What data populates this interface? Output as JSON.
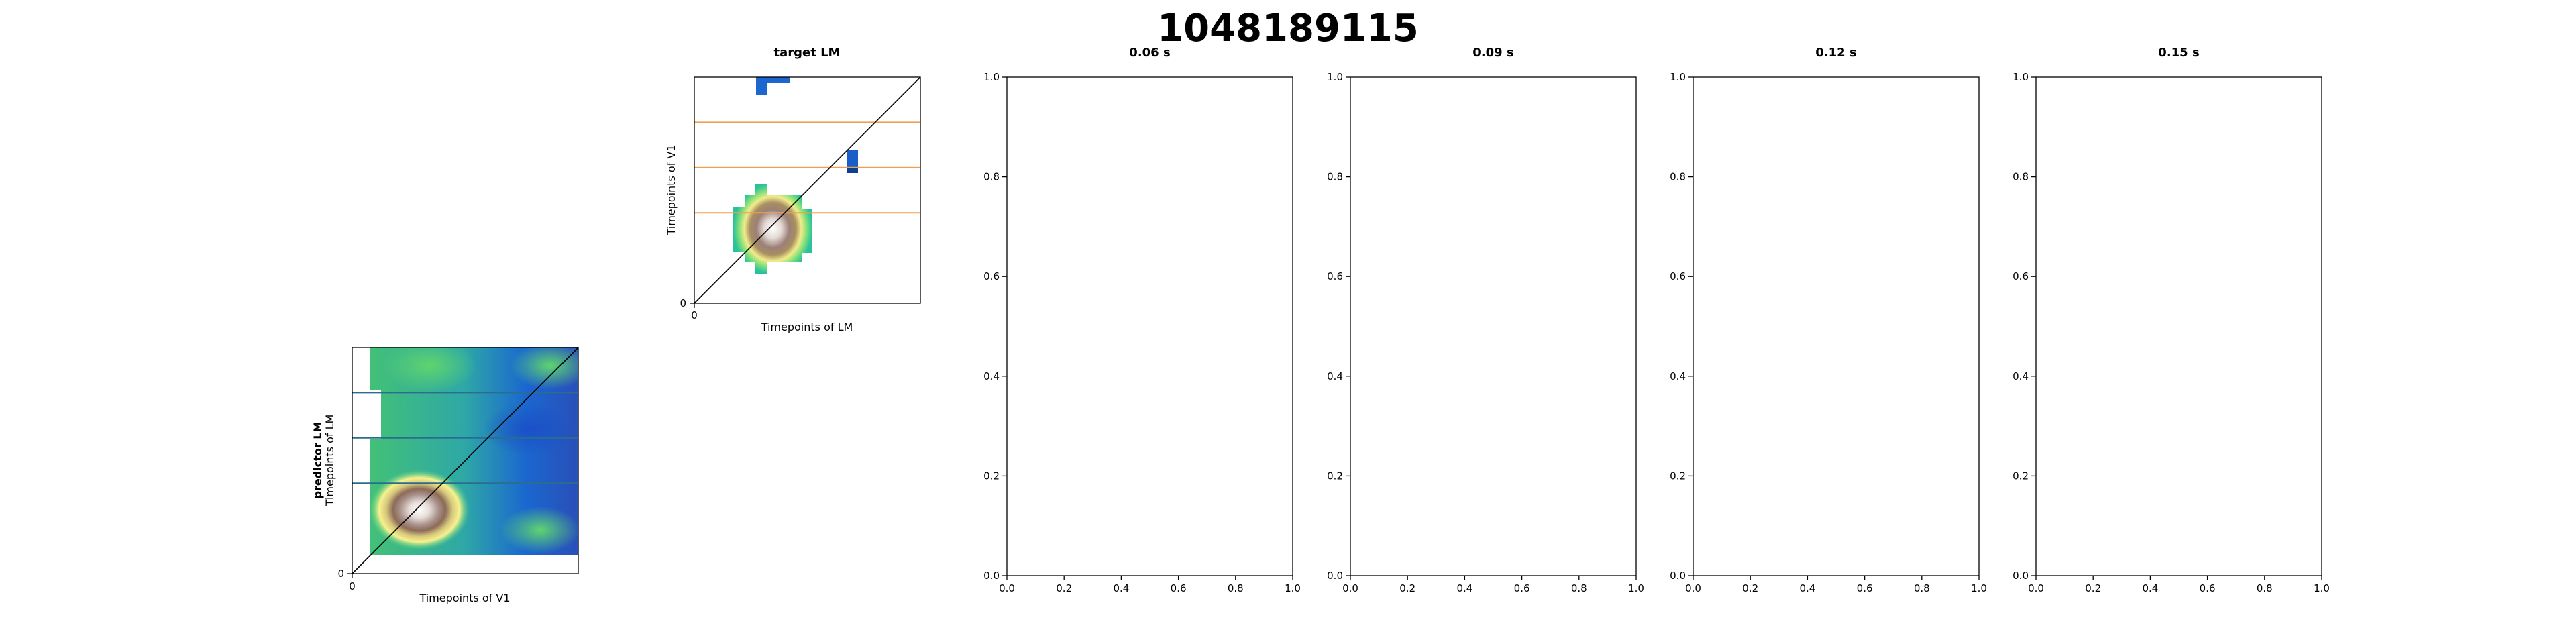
{
  "figure": {
    "title": "1048189115"
  },
  "chart_data": [
    {
      "type": "heatmap",
      "id": "predictor",
      "title": "",
      "row_label": "predictor LM",
      "xlabel": "Timepoints of V1",
      "ylabel": "Timepoints of LM",
      "xticks": [
        "0"
      ],
      "yticks": [
        "0"
      ],
      "diagonal": true,
      "hlines": [
        0.4,
        0.6,
        0.8
      ],
      "hline_color": "#2a6d8f",
      "colormap": "terrain-reversed"
    },
    {
      "type": "heatmap",
      "id": "target",
      "title": "target LM",
      "xlabel": "Timepoints of LM",
      "ylabel": "Timepoints of V1",
      "xticks": [
        "0"
      ],
      "yticks": [
        "0"
      ],
      "diagonal": true,
      "hlines": [
        0.4,
        0.6,
        0.8
      ],
      "hline_color": "#f0a050",
      "colormap": "terrain-reversed"
    },
    {
      "type": "line",
      "id": "t006",
      "title": "0.06 s",
      "xlim": [
        0,
        1
      ],
      "ylim": [
        0,
        1
      ],
      "xticks": [
        "0.0",
        "0.2",
        "0.4",
        "0.6",
        "0.8",
        "1.0"
      ],
      "yticks": [
        "0.0",
        "0.2",
        "0.4",
        "0.6",
        "0.8",
        "1.0"
      ],
      "series": []
    },
    {
      "type": "line",
      "id": "t009",
      "title": "0.09 s",
      "xlim": [
        0,
        1
      ],
      "ylim": [
        0,
        1
      ],
      "xticks": [
        "0.0",
        "0.2",
        "0.4",
        "0.6",
        "0.8",
        "1.0"
      ],
      "yticks": [
        "0.0",
        "0.2",
        "0.4",
        "0.6",
        "0.8",
        "1.0"
      ],
      "series": []
    },
    {
      "type": "line",
      "id": "t012",
      "title": "0.12 s",
      "xlim": [
        0,
        1
      ],
      "ylim": [
        0,
        1
      ],
      "xticks": [
        "0.0",
        "0.2",
        "0.4",
        "0.6",
        "0.8",
        "1.0"
      ],
      "yticks": [
        "0.0",
        "0.2",
        "0.4",
        "0.6",
        "0.8",
        "1.0"
      ],
      "series": []
    },
    {
      "type": "line",
      "id": "t015",
      "title": "0.15 s",
      "xlim": [
        0,
        1
      ],
      "ylim": [
        0,
        1
      ],
      "xticks": [
        "0.0",
        "0.2",
        "0.4",
        "0.6",
        "0.8",
        "1.0"
      ],
      "yticks": [
        "0.0",
        "0.2",
        "0.4",
        "0.6",
        "0.8",
        "1.0"
      ],
      "series": []
    }
  ]
}
